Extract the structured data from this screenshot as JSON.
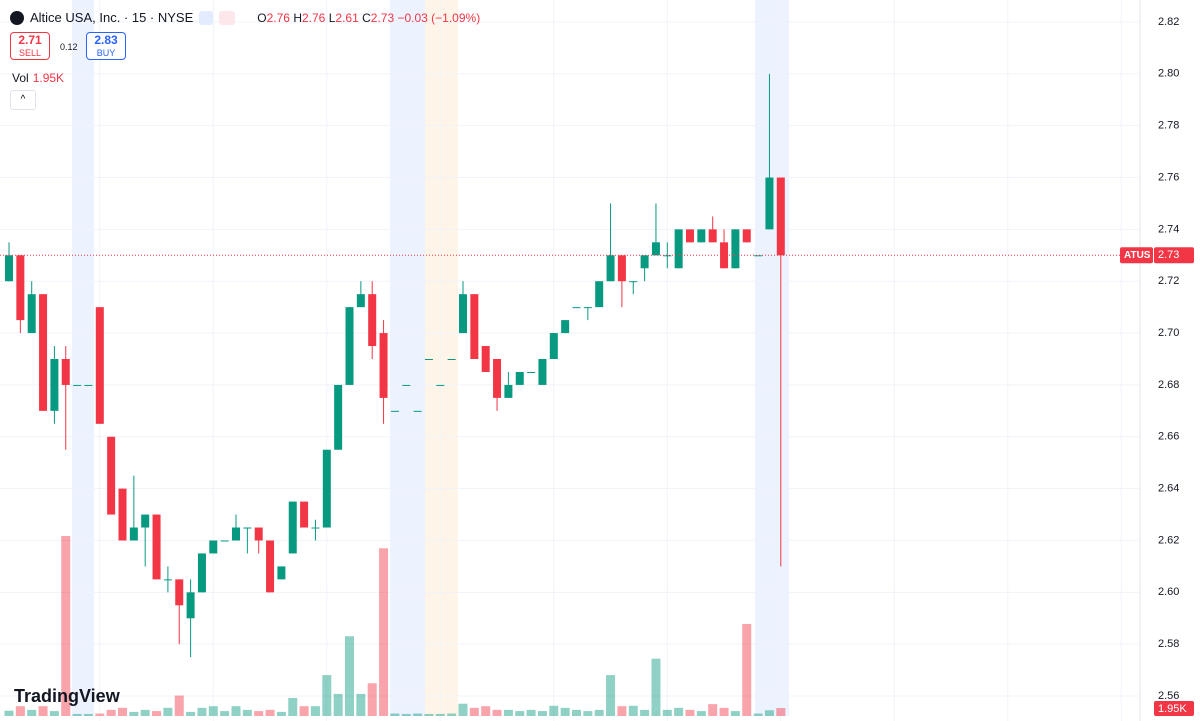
{
  "header": {
    "title": "Altice USA, Inc. · 15 · NYSE",
    "open_label": "O",
    "open": "2.76",
    "high_label": "H",
    "high": "2.76",
    "low_label": "L",
    "low": "2.61",
    "close_label": "C",
    "close": "2.73",
    "change": "−0.03 (−1.09%)",
    "sell_price": "2.71",
    "sell_label": "SELL",
    "spread": "0.12",
    "buy_price": "2.83",
    "buy_label": "BUY",
    "vol_label": "Vol",
    "vol_value": "1.95K"
  },
  "chart_data": {
    "type": "candlestick",
    "symbol_label": "ATUS",
    "last_price_label": "2.73",
    "volume_axis_label": "1.95K",
    "brand": "TradingView",
    "up_color": "#089981",
    "down_color": "#f23645",
    "grid": true,
    "ylim": [
      2.555,
      2.825
    ],
    "yticks": [
      2.56,
      2.58,
      {
        "value": 2.6,
        "label": "2.60"
      },
      2.62,
      2.64,
      2.66,
      2.68,
      {
        "value": 2.7,
        "label": "2.70"
      },
      2.72,
      2.74,
      2.76,
      2.78,
      {
        "value": 2.8,
        "label": "2.80"
      },
      2.82
    ],
    "open": [
      2.72,
      2.73,
      2.7,
      2.715,
      2.67,
      2.69,
      2.68,
      2.68,
      2.71,
      2.66,
      2.64,
      2.62,
      2.625,
      2.63,
      2.605,
      2.605,
      2.59,
      2.6,
      2.615,
      2.62,
      2.62,
      2.625,
      2.625,
      2.62,
      2.605,
      2.615,
      2.635,
      2.625,
      2.625,
      2.655,
      2.68,
      2.71,
      2.715,
      2.7,
      2.67,
      2.68,
      2.67,
      2.69,
      2.68,
      2.69,
      2.7,
      2.715,
      2.695,
      2.69,
      2.675,
      2.68,
      2.685,
      2.68,
      2.69,
      2.7,
      2.71,
      2.71,
      2.71,
      2.72,
      2.73,
      2.72,
      2.725,
      2.73,
      2.73,
      2.725,
      2.74,
      2.735,
      2.74,
      2.735,
      2.725,
      2.74,
      2.73,
      2.74,
      2.76
    ],
    "high": [
      2.735,
      2.73,
      2.72,
      2.715,
      2.695,
      2.695,
      2.68,
      2.68,
      2.71,
      2.66,
      2.64,
      2.645,
      2.63,
      2.63,
      2.61,
      2.605,
      2.605,
      2.615,
      2.62,
      2.62,
      2.63,
      2.625,
      2.625,
      2.62,
      2.61,
      2.635,
      2.635,
      2.628,
      2.655,
      2.68,
      2.71,
      2.72,
      2.72,
      2.705,
      2.67,
      2.68,
      2.67,
      2.69,
      2.68,
      2.69,
      2.72,
      2.715,
      2.695,
      2.69,
      2.685,
      2.685,
      2.685,
      2.69,
      2.7,
      2.705,
      2.71,
      2.71,
      2.72,
      2.75,
      2.73,
      2.72,
      2.73,
      2.75,
      2.735,
      2.74,
      2.74,
      2.74,
      2.745,
      2.74,
      2.74,
      2.74,
      2.73,
      2.8,
      2.76
    ],
    "low": [
      2.72,
      2.7,
      2.7,
      2.67,
      2.665,
      2.655,
      2.68,
      2.68,
      2.665,
      2.63,
      2.62,
      2.62,
      2.61,
      2.605,
      2.6,
      2.58,
      2.575,
      2.6,
      2.615,
      2.62,
      2.62,
      2.615,
      2.615,
      2.6,
      2.605,
      2.615,
      2.625,
      2.62,
      2.625,
      2.655,
      2.68,
      2.71,
      2.69,
      2.665,
      2.67,
      2.68,
      2.67,
      2.69,
      2.68,
      2.69,
      2.7,
      2.69,
      2.685,
      2.67,
      2.675,
      2.68,
      2.685,
      2.68,
      2.69,
      2.7,
      2.71,
      2.705,
      2.71,
      2.72,
      2.71,
      2.715,
      2.72,
      2.73,
      2.725,
      2.725,
      2.735,
      2.735,
      2.735,
      2.725,
      2.725,
      2.735,
      2.73,
      2.74,
      2.61
    ],
    "close": [
      2.73,
      2.705,
      2.715,
      2.67,
      2.69,
      2.68,
      2.68,
      2.68,
      2.665,
      2.63,
      2.62,
      2.625,
      2.63,
      2.605,
      2.605,
      2.595,
      2.6,
      2.615,
      2.62,
      2.62,
      2.625,
      2.625,
      2.62,
      2.6,
      2.61,
      2.635,
      2.625,
      2.625,
      2.655,
      2.68,
      2.71,
      2.715,
      2.695,
      2.675,
      2.67,
      2.68,
      2.67,
      2.69,
      2.68,
      2.69,
      2.715,
      2.69,
      2.685,
      2.675,
      2.68,
      2.685,
      2.685,
      2.69,
      2.7,
      2.705,
      2.71,
      2.71,
      2.72,
      2.73,
      2.72,
      2.72,
      2.73,
      2.735,
      2.73,
      2.74,
      2.735,
      2.74,
      2.735,
      2.725,
      2.74,
      2.735,
      2.73,
      2.76,
      2.73
    ],
    "volume": [
      1.3,
      2.4,
      1.5,
      2.4,
      1.2,
      44,
      0.5,
      0.5,
      0.6,
      1.5,
      2,
      1,
      1.5,
      1.2,
      2,
      5,
      1,
      2,
      2.4,
      1.2,
      2.4,
      1.5,
      1.2,
      1.5,
      1,
      4.4,
      2.4,
      2.4,
      10,
      5.4,
      19.5,
      5.4,
      8,
      41,
      0.6,
      0.5,
      0.6,
      0.5,
      0.5,
      0.6,
      3,
      2,
      2.4,
      1.5,
      1.5,
      1.2,
      1.5,
      1.2,
      2.5,
      2,
      1.5,
      1.2,
      1.5,
      10,
      2.4,
      2.5,
      1.5,
      14,
      1.5,
      2,
      1.5,
      1.2,
      2.9,
      2,
      1.2,
      22.5,
      0.6,
      1.4,
      1.95
    ]
  }
}
